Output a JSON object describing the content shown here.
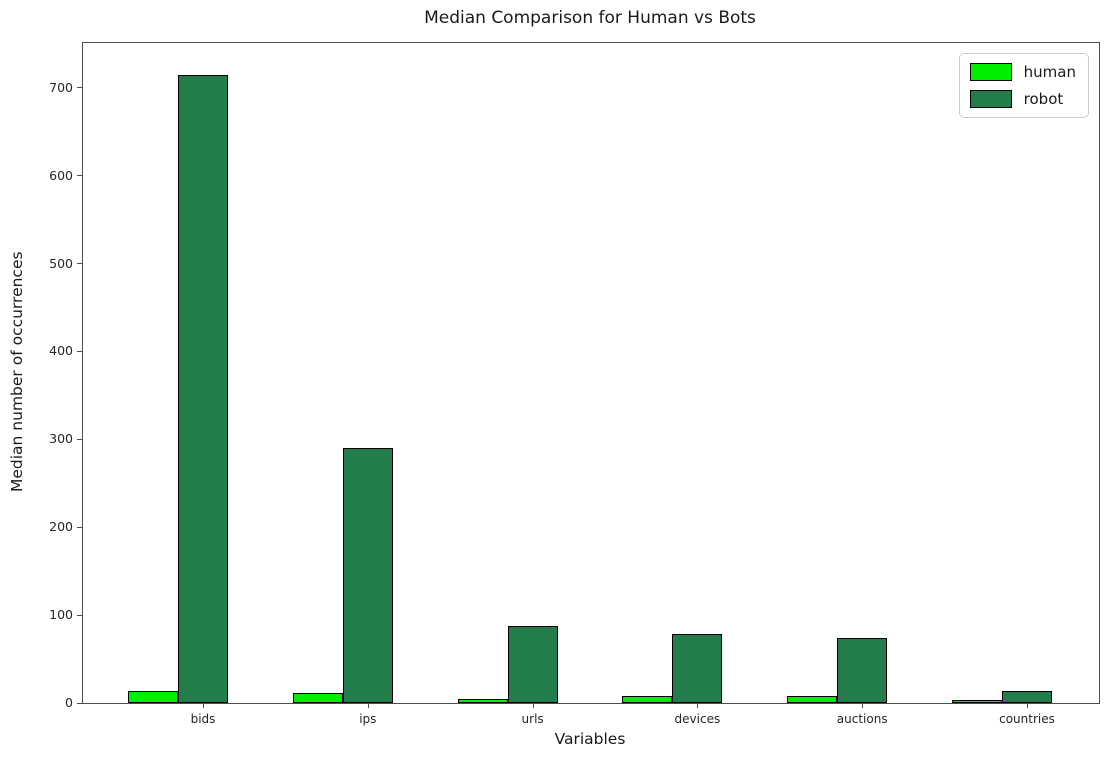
{
  "chart_data": {
    "type": "bar",
    "title": "Median Comparison for Human vs Bots",
    "xlabel": "Variables",
    "ylabel": "Median number of occurrences",
    "categories": [
      "bids",
      "ips",
      "urls",
      "devices",
      "auctions",
      "countries"
    ],
    "series": [
      {
        "name": "human",
        "color": "#00EE00",
        "values": [
          14,
          11,
          5,
          8,
          8,
          3
        ]
      },
      {
        "name": "robot",
        "color": "#227D4A",
        "values": [
          715,
          290,
          88,
          78,
          74,
          14
        ]
      }
    ],
    "bar_edge_color": "#000000",
    "yticks": [
      0,
      100,
      200,
      300,
      400,
      500,
      600,
      700
    ],
    "ylim": [
      0,
      751
    ],
    "grid": false,
    "legend_position": "upper right"
  }
}
